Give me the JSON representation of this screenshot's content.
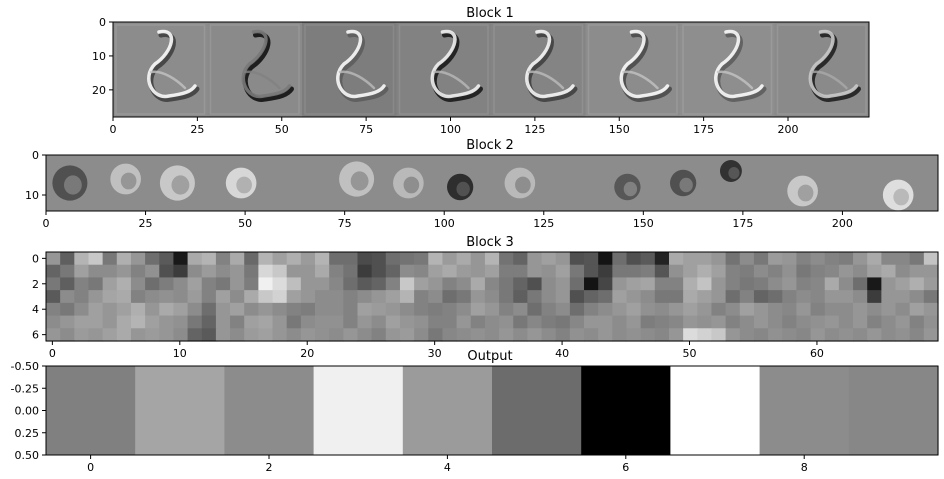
{
  "chart_data": [
    {
      "type": "heatmap",
      "title": "Block 1",
      "xlim": [
        0,
        224
      ],
      "ylim": [
        0,
        28
      ],
      "xticks": [
        0,
        25,
        50,
        75,
        100,
        125,
        150,
        175,
        200
      ],
      "yticks": [
        0,
        10,
        20
      ],
      "tiles": [
        {
          "x0": 0,
          "width": 28,
          "background": 140,
          "stroke": 250,
          "shadow": 60
        },
        {
          "x0": 28,
          "width": 28,
          "background": 138,
          "stroke": 120,
          "shadow": 10
        },
        {
          "x0": 56,
          "width": 28,
          "background": 125,
          "stroke": 250,
          "shadow": 90
        },
        {
          "x0": 84,
          "width": 28,
          "background": 130,
          "stroke": 240,
          "shadow": 20
        },
        {
          "x0": 112,
          "width": 28,
          "background": 132,
          "stroke": 245,
          "shadow": 60
        },
        {
          "x0": 140,
          "width": 28,
          "background": 140,
          "stroke": 250,
          "shadow": 70
        },
        {
          "x0": 168,
          "width": 28,
          "background": 142,
          "stroke": 250,
          "shadow": 90
        },
        {
          "x0": 196,
          "width": 28,
          "background": 138,
          "stroke": 200,
          "shadow": 25
        }
      ]
    },
    {
      "type": "heatmap",
      "title": "Block 2",
      "xlim": [
        0,
        224
      ],
      "ylim": [
        0,
        14
      ],
      "xticks": [
        0,
        25,
        50,
        75,
        100,
        125,
        150,
        175,
        200
      ],
      "yticks": [
        0,
        10
      ],
      "background": 140,
      "blobs": [
        {
          "x": 6,
          "y": 7,
          "size": 8,
          "value": 60
        },
        {
          "x": 20,
          "y": 6,
          "size": 7,
          "value": 210
        },
        {
          "x": 33,
          "y": 7,
          "size": 8,
          "value": 220
        },
        {
          "x": 49,
          "y": 7,
          "size": 7,
          "value": 240
        },
        {
          "x": 78,
          "y": 6,
          "size": 8,
          "value": 210
        },
        {
          "x": 91,
          "y": 7,
          "size": 7,
          "value": 200
        },
        {
          "x": 104,
          "y": 8,
          "size": 6,
          "value": 15
        },
        {
          "x": 119,
          "y": 7,
          "size": 7,
          "value": 200
        },
        {
          "x": 146,
          "y": 8,
          "size": 6,
          "value": 70
        },
        {
          "x": 160,
          "y": 7,
          "size": 6,
          "value": 60
        },
        {
          "x": 172,
          "y": 4,
          "size": 5,
          "value": 20
        },
        {
          "x": 190,
          "y": 9,
          "size": 7,
          "value": 220
        },
        {
          "x": 214,
          "y": 10,
          "size": 7,
          "value": 250
        }
      ]
    },
    {
      "type": "heatmap",
      "title": "Block 3",
      "xlim": [
        0,
        70
      ],
      "ylim": [
        0,
        7
      ],
      "xticks": [
        0,
        10,
        20,
        30,
        40,
        50,
        60
      ],
      "yticks": [
        0,
        2,
        4,
        6
      ],
      "values": [
        [
          150,
          95,
          180,
          200,
          120,
          175,
          150,
          110,
          90,
          25,
          170,
          180,
          130,
          170,
          105,
          180,
          160,
          175,
          155,
          180,
          110,
          110,
          75,
          80,
          110,
          115,
          120,
          180,
          155,
          170,
          150,
          180,
          115,
          100,
          150,
          160,
          150,
          80,
          85,
          20,
          110,
          80,
          90,
          35,
          170,
          160,
          160,
          150,
          115,
          140,
          120,
          155,
          150,
          130,
          140,
          130,
          125,
          150,
          170,
          135,
          135,
          120,
          195
        ],
        [
          100,
          120,
          160,
          140,
          140,
          150,
          130,
          145,
          80,
          60,
          140,
          155,
          140,
          150,
          120,
          215,
          200,
          150,
          150,
          170,
          130,
          115,
          60,
          80,
          100,
          140,
          135,
          160,
          170,
          155,
          150,
          160,
          125,
          125,
          150,
          145,
          160,
          120,
          85,
          60,
          120,
          120,
          125,
          85,
          145,
          160,
          175,
          160,
          130,
          125,
          140,
          130,
          145,
          120,
          130,
          135,
          150,
          140,
          160,
          170,
          140,
          150,
          150
        ],
        [
          120,
          95,
          130,
          120,
          160,
          175,
          140,
          110,
          125,
          140,
          160,
          130,
          120,
          150,
          125,
          240,
          220,
          190,
          150,
          150,
          135,
          110,
          90,
          100,
          130,
          200,
          160,
          150,
          130,
          140,
          170,
          135,
          120,
          100,
          80,
          140,
          150,
          110,
          20,
          70,
          150,
          160,
          165,
          130,
          130,
          175,
          195,
          150,
          130,
          120,
          125,
          140,
          150,
          130,
          135,
          170,
          140,
          110,
          25,
          150,
          160,
          175,
          155
        ],
        [
          90,
          140,
          130,
          150,
          165,
          170,
          130,
          140,
          145,
          140,
          155,
          130,
          160,
          140,
          170,
          200,
          210,
          160,
          150,
          140,
          140,
          130,
          140,
          150,
          160,
          180,
          130,
          140,
          110,
          120,
          150,
          140,
          120,
          95,
          120,
          140,
          150,
          80,
          100,
          110,
          160,
          150,
          140,
          120,
          120,
          170,
          160,
          150,
          110,
          130,
          100,
          110,
          130,
          140,
          135,
          150,
          150,
          140,
          60,
          150,
          150,
          140,
          120
        ],
        [
          130,
          120,
          140,
          160,
          150,
          160,
          175,
          150,
          170,
          160,
          140,
          110,
          150,
          160,
          140,
          150,
          140,
          130,
          125,
          140,
          140,
          130,
          160,
          155,
          150,
          140,
          130,
          125,
          130,
          140,
          160,
          150,
          130,
          140,
          110,
          130,
          140,
          110,
          130,
          140,
          150,
          160,
          145,
          140,
          150,
          160,
          150,
          130,
          140,
          160,
          150,
          140,
          135,
          150,
          130,
          140,
          140,
          150,
          140,
          150,
          140,
          160,
          150
        ],
        [
          140,
          150,
          160,
          160,
          150,
          170,
          180,
          160,
          150,
          145,
          120,
          100,
          150,
          130,
          160,
          165,
          150,
          120,
          140,
          145,
          145,
          130,
          150,
          140,
          160,
          150,
          145,
          130,
          130,
          150,
          130,
          140,
          145,
          120,
          135,
          125,
          120,
          135,
          150,
          150,
          140,
          150,
          125,
          130,
          135,
          150,
          145,
          150,
          130,
          140,
          150,
          140,
          130,
          140,
          145,
          150,
          140,
          150,
          130,
          140,
          150,
          130,
          145
        ],
        [
          150,
          140,
          155,
          150,
          160,
          170,
          150,
          155,
          150,
          140,
          100,
          90,
          150,
          140,
          155,
          160,
          150,
          140,
          150,
          145,
          140,
          150,
          140,
          130,
          150,
          155,
          140,
          120,
          135,
          140,
          145,
          140,
          150,
          140,
          150,
          140,
          130,
          145,
          140,
          150,
          140,
          145,
          140,
          135,
          150,
          220,
          210,
          200,
          150,
          140,
          135,
          145,
          140,
          135,
          150,
          140,
          145,
          140,
          150,
          140,
          145,
          135,
          150
        ]
      ]
    },
    {
      "type": "heatmap",
      "title": "Output",
      "categories": [
        0,
        1,
        2,
        3,
        4,
        5,
        6,
        7,
        8,
        9
      ],
      "values": [
        128,
        165,
        140,
        240,
        155,
        108,
        0,
        255,
        140,
        135
      ],
      "xlim": [
        -0.5,
        9.5
      ],
      "ylim": [
        0.5,
        -0.5
      ],
      "xticks": [
        0,
        2,
        4,
        6,
        8
      ],
      "yticks": [
        -0.5,
        -0.25,
        0.0,
        0.25,
        0.5
      ],
      "ytick_labels": [
        "-0.50",
        "-0.25",
        "0.00",
        "0.25",
        "0.50"
      ]
    }
  ]
}
